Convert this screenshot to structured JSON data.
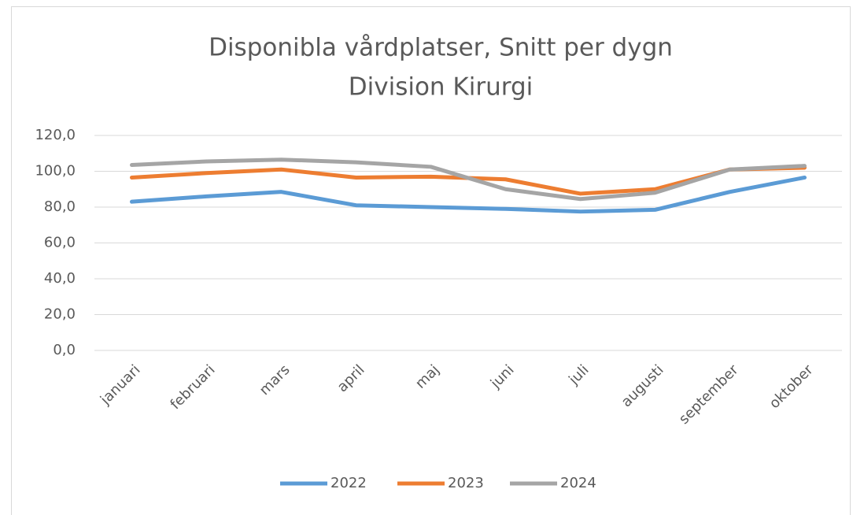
{
  "chart_data": {
    "type": "line",
    "title": [
      "Disponibla vårdplatser, Snitt per dygn",
      "Division Kirurgi"
    ],
    "categories": [
      "januari",
      "februari",
      "mars",
      "april",
      "maj",
      "juni",
      "juli",
      "augusti",
      "september",
      "oktober"
    ],
    "series": [
      {
        "name": "2022",
        "color": "#5b9bd5",
        "values": [
          83,
          86,
          88.5,
          81,
          80,
          79,
          77.5,
          78.5,
          88.5,
          96.5
        ]
      },
      {
        "name": "2023",
        "color": "#ed7d31",
        "values": [
          96.5,
          99,
          101,
          96.5,
          97,
          95.5,
          87.5,
          90,
          101,
          102
        ]
      },
      {
        "name": "2024",
        "color": "#a5a5a5",
        "values": [
          103.5,
          105.5,
          106.5,
          105,
          102.5,
          90,
          84.5,
          88,
          101,
          103
        ]
      }
    ],
    "ylim": [
      0,
      120
    ],
    "yticks": [
      {
        "value": 0,
        "label": "0,0"
      },
      {
        "value": 20,
        "label": "20,0"
      },
      {
        "value": 40,
        "label": "40,0"
      },
      {
        "value": 60,
        "label": "60,0"
      },
      {
        "value": 80,
        "label": "80,0"
      },
      {
        "value": 100,
        "label": "100,0"
      },
      {
        "value": 120,
        "label": "120,0"
      }
    ],
    "grid": true,
    "legend": "bottom"
  }
}
